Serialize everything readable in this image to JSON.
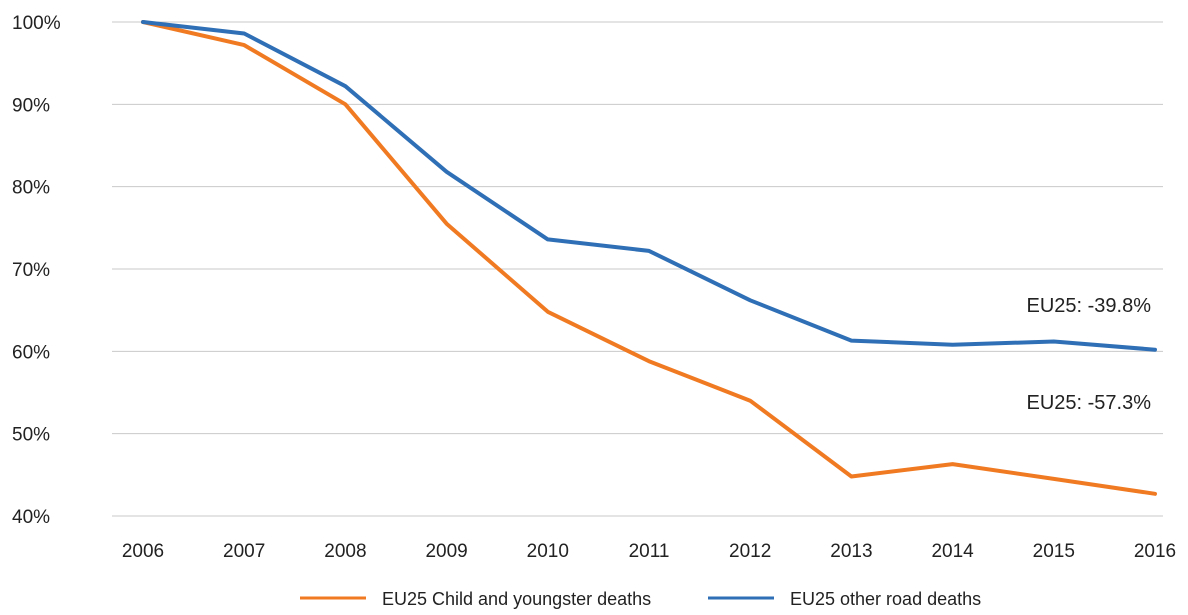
{
  "chart_data": {
    "type": "line",
    "categories": [
      "2006",
      "2007",
      "2008",
      "2009",
      "2010",
      "2011",
      "2012",
      "2013",
      "2014",
      "2015",
      "2016"
    ],
    "ylim": [
      40,
      100
    ],
    "yticks": [
      100,
      90,
      80,
      70,
      60,
      50,
      40
    ],
    "ytick_labels": [
      "100%",
      "90%",
      "80%",
      "70%",
      "60%",
      "50%",
      "40%"
    ],
    "grid": "horizontal",
    "legend_position": "bottom",
    "series": [
      {
        "name": "EU25 Child and youngster deaths",
        "color": "#f07a22",
        "values": [
          100,
          97.2,
          90,
          75.5,
          64.8,
          58.8,
          54,
          44.8,
          46.3,
          44.5,
          42.7
        ]
      },
      {
        "name": "EU25 other road deaths",
        "color": "#2f6fb5",
        "values": [
          100,
          98.6,
          92.2,
          81.8,
          73.6,
          72.2,
          66.2,
          61.3,
          60.8,
          61.2,
          60.2
        ]
      }
    ],
    "annotations": [
      {
        "text": "EU25: -39.8%",
        "series": 1,
        "x": "2016",
        "y": 64.8
      },
      {
        "text": "EU25: -57.3%",
        "series": 0,
        "x": "2016",
        "y": 53
      }
    ]
  }
}
